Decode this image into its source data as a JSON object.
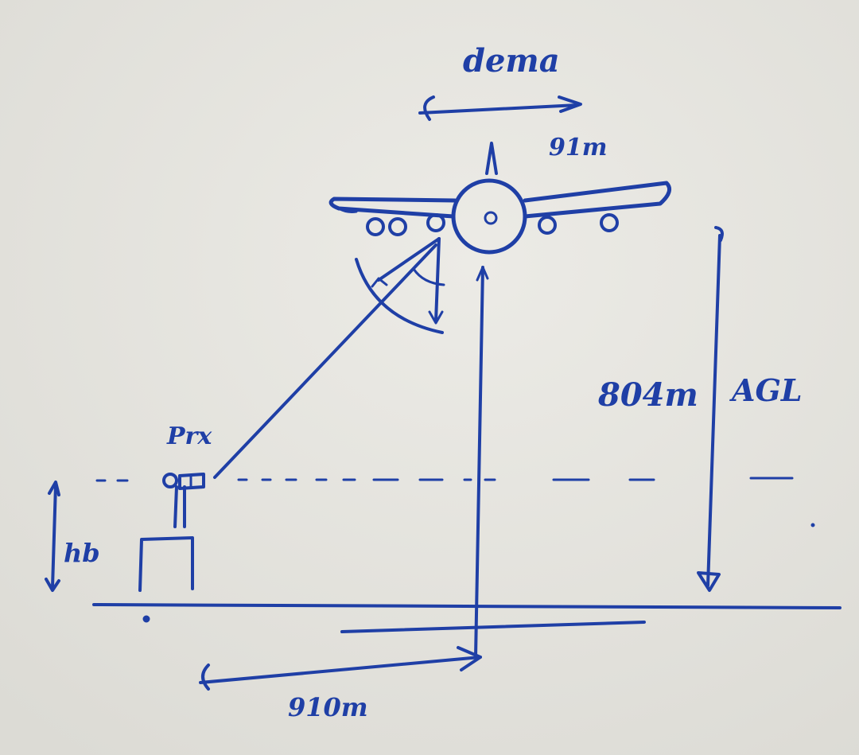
{
  "labels": {
    "span_label": "dema",
    "span_value": "91m",
    "altitude_value": "804m",
    "altitude_ref": "AGL",
    "receiver": "Prx",
    "height": "hb",
    "distance": "910m"
  },
  "colors": {
    "ink": "#1f3fa6",
    "paper": "#e9e8e3"
  }
}
